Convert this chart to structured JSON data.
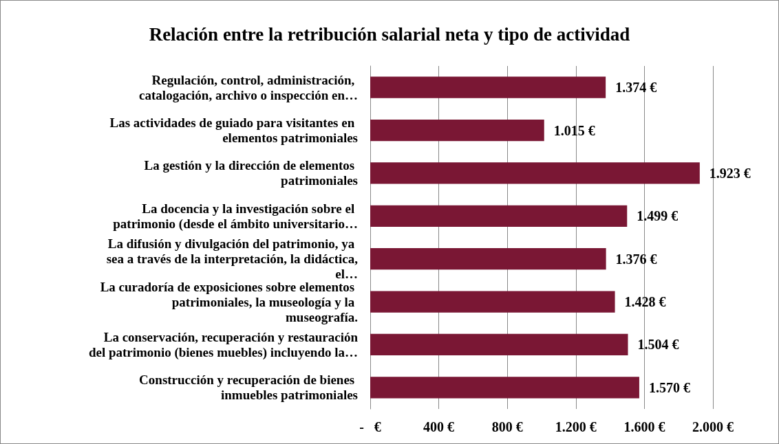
{
  "chart_data": {
    "type": "bar",
    "orientation": "horizontal",
    "title": "Relación entre la retribución salarial neta y tipo de actividad",
    "categories": [
      "Regulación, control, administración, catalogación, archivo o inspección en…",
      "Las actividades de guiado para visitantes en elementos patrimoniales",
      "La gestión y la dirección de elementos patrimoniales",
      "La docencia y la investigación sobre el patrimonio (desde el ámbito universitario…",
      "La difusión y divulgación del patrimonio, ya sea a través de la interpretación, la didáctica, el…",
      "La curadoría de exposiciones sobre elementos patrimoniales, la museología y la museografía.",
      "La conservación, recuperación y restauración del patrimonio (bienes muebles) incluyendo la…",
      "Construcción y recuperación de bienes inmuebles patrimoniales"
    ],
    "values": [
      1374,
      1015,
      1923,
      1499,
      1376,
      1428,
      1504,
      1570
    ],
    "value_labels": [
      "1.374 €",
      "1.015 €",
      "1.923 €",
      "1.499 €",
      "1.376 €",
      "1.428 €",
      "1.504 €",
      "1.570 €"
    ],
    "color": "#7a1734",
    "xlim": [
      0,
      2000
    ],
    "xticks": [
      {
        "value": 0,
        "label": "-   €"
      },
      {
        "value": 400,
        "label": "400 €"
      },
      {
        "value": 800,
        "label": "800 €"
      },
      {
        "value": 1200,
        "label": "1.200 €"
      },
      {
        "value": 1600,
        "label": "1.600 €"
      },
      {
        "value": 2000,
        "label": "2.000 €"
      }
    ],
    "grid": "x"
  }
}
